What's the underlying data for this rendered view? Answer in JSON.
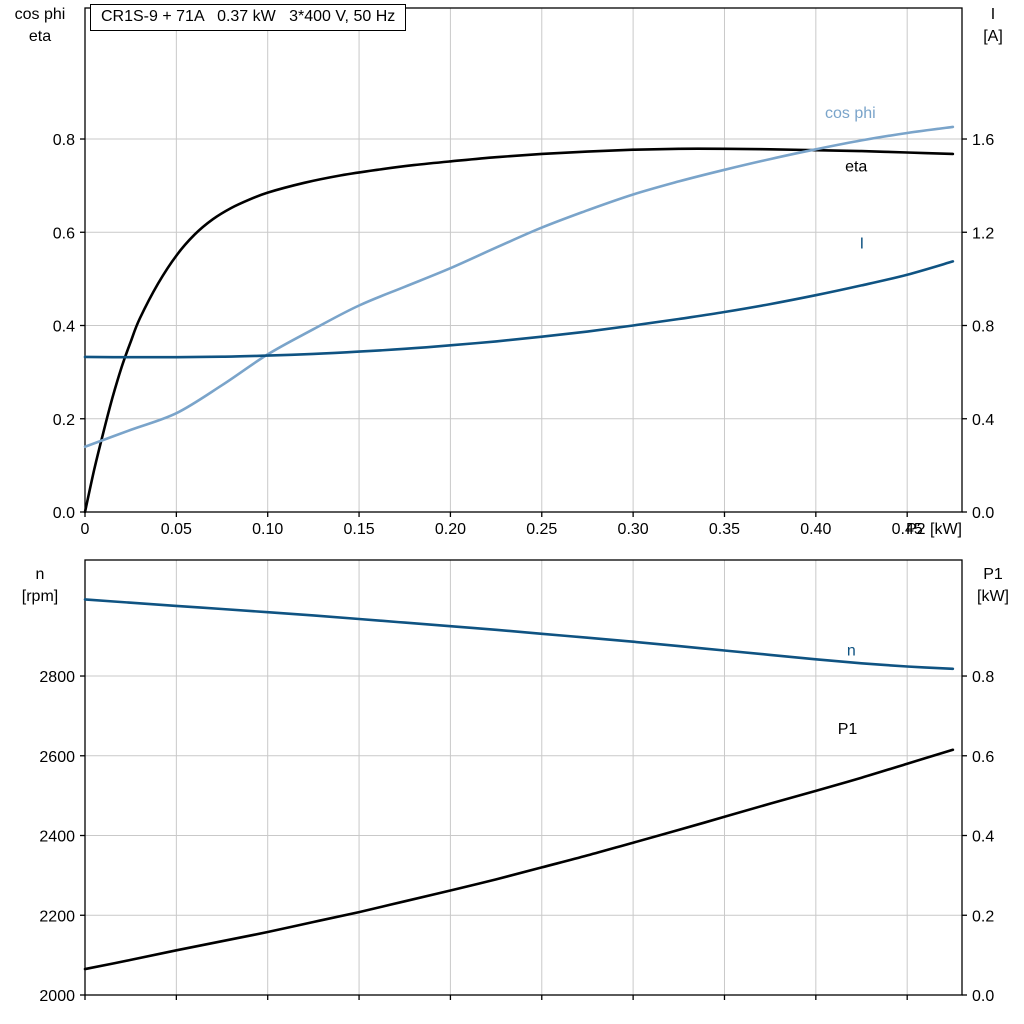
{
  "header": {
    "title": "CR1S-9 + 71A   0.37 kW   3*400 V, 50 Hz"
  },
  "colors": {
    "frame": "#000000",
    "grid": "#c9c9c9",
    "black": "#000000",
    "light_blue": "#7aa4ca",
    "dark_blue": "#0f5382"
  },
  "chart_data": [
    {
      "type": "line",
      "axes": {
        "x": {
          "label": "P2 [kW]",
          "min": 0,
          "max": 0.48,
          "ticks": [
            0,
            0.05,
            0.1,
            0.15,
            0.2,
            0.25,
            0.3,
            0.35,
            0.4,
            0.45
          ],
          "tick_labels": [
            "0",
            "0.05",
            "0.10",
            "0.15",
            "0.20",
            "0.25",
            "0.30",
            "0.35",
            "0.40",
            "0.45"
          ]
        },
        "left": {
          "title_lines": [
            "cos phi",
            "eta"
          ],
          "min": 0,
          "max": 1.081,
          "ticks": [
            0,
            0.2,
            0.4,
            0.6,
            0.8
          ],
          "tick_labels": [
            "0.0",
            "0.2",
            "0.4",
            "0.6",
            "0.8"
          ]
        },
        "right": {
          "title_lines": [
            "I",
            "[A]"
          ],
          "min": 0,
          "max": 2.162,
          "ticks": [
            0,
            0.4,
            0.8,
            1.2,
            1.6
          ],
          "tick_labels": [
            "0.0",
            "0.4",
            "0.8",
            "1.2",
            "1.6"
          ]
        }
      },
      "series": [
        {
          "name": "eta",
          "label": "eta",
          "axis": "left",
          "color": "black",
          "label_at": {
            "x": 0.416,
            "v": 0.73
          },
          "points": [
            [
              0,
              0
            ],
            [
              0.005,
              0.09
            ],
            [
              0.01,
              0.17
            ],
            [
              0.015,
              0.245
            ],
            [
              0.02,
              0.31
            ],
            [
              0.025,
              0.365
            ],
            [
              0.03,
              0.415
            ],
            [
              0.04,
              0.49
            ],
            [
              0.05,
              0.55
            ],
            [
              0.06,
              0.595
            ],
            [
              0.07,
              0.628
            ],
            [
              0.08,
              0.652
            ],
            [
              0.09,
              0.67
            ],
            [
              0.1,
              0.685
            ],
            [
              0.12,
              0.706
            ],
            [
              0.14,
              0.722
            ],
            [
              0.16,
              0.734
            ],
            [
              0.18,
              0.744
            ],
            [
              0.2,
              0.752
            ],
            [
              0.225,
              0.761
            ],
            [
              0.25,
              0.768
            ],
            [
              0.275,
              0.773
            ],
            [
              0.3,
              0.777
            ],
            [
              0.325,
              0.779
            ],
            [
              0.35,
              0.779
            ],
            [
              0.375,
              0.778
            ],
            [
              0.4,
              0.776
            ],
            [
              0.425,
              0.774
            ],
            [
              0.45,
              0.771
            ],
            [
              0.475,
              0.768
            ]
          ]
        },
        {
          "name": "cos-phi",
          "label": "cos phi",
          "axis": "left",
          "color": "light_blue",
          "label_at": {
            "x": 0.405,
            "v": 0.845
          },
          "points": [
            [
              0,
              0.14
            ],
            [
              0.025,
              0.176
            ],
            [
              0.05,
              0.212
            ],
            [
              0.075,
              0.272
            ],
            [
              0.1,
              0.338
            ],
            [
              0.125,
              0.392
            ],
            [
              0.15,
              0.443
            ],
            [
              0.175,
              0.483
            ],
            [
              0.2,
              0.523
            ],
            [
              0.225,
              0.567
            ],
            [
              0.25,
              0.61
            ],
            [
              0.275,
              0.647
            ],
            [
              0.3,
              0.681
            ],
            [
              0.325,
              0.709
            ],
            [
              0.35,
              0.734
            ],
            [
              0.375,
              0.757
            ],
            [
              0.4,
              0.778
            ],
            [
              0.425,
              0.797
            ],
            [
              0.45,
              0.813
            ],
            [
              0.475,
              0.826
            ]
          ]
        },
        {
          "name": "current",
          "label": "I",
          "axis": "right",
          "color": "dark_blue",
          "label_at": {
            "x": 0.424,
            "v": 1.13
          },
          "points": [
            [
              0,
              0.665
            ],
            [
              0.025,
              0.664
            ],
            [
              0.05,
              0.664
            ],
            [
              0.075,
              0.666
            ],
            [
              0.1,
              0.671
            ],
            [
              0.125,
              0.678
            ],
            [
              0.15,
              0.688
            ],
            [
              0.175,
              0.7
            ],
            [
              0.2,
              0.715
            ],
            [
              0.225,
              0.732
            ],
            [
              0.25,
              0.752
            ],
            [
              0.275,
              0.774
            ],
            [
              0.3,
              0.8
            ],
            [
              0.325,
              0.828
            ],
            [
              0.35,
              0.858
            ],
            [
              0.375,
              0.892
            ],
            [
              0.4,
              0.93
            ],
            [
              0.425,
              0.972
            ],
            [
              0.45,
              1.018
            ],
            [
              0.475,
              1.075
            ]
          ]
        }
      ]
    },
    {
      "type": "line",
      "axes": {
        "x": {
          "label": "",
          "min": 0,
          "max": 0.48,
          "ticks": [
            0,
            0.05,
            0.1,
            0.15,
            0.2,
            0.25,
            0.3,
            0.35,
            0.4,
            0.45
          ],
          "tick_labels": []
        },
        "left": {
          "title_lines": [
            "n",
            "[rpm]"
          ],
          "min": 2000,
          "max": 3091,
          "ticks": [
            2000,
            2200,
            2400,
            2600,
            2800
          ],
          "tick_labels": [
            "2000",
            "2200",
            "2400",
            "2600",
            "2800"
          ]
        },
        "right": {
          "title_lines": [
            "P1",
            "[kW]"
          ],
          "min": 0,
          "max": 1.091,
          "ticks": [
            0,
            0.2,
            0.4,
            0.6,
            0.8
          ],
          "tick_labels": [
            "0.0",
            "0.2",
            "0.4",
            "0.6",
            "0.8"
          ]
        }
      },
      "series": [
        {
          "name": "speed",
          "label": "n",
          "axis": "left",
          "color": "dark_blue",
          "label_at": {
            "x": 0.417,
            "v": 2852
          },
          "points": [
            [
              0,
              2992
            ],
            [
              0.025,
              2984
            ],
            [
              0.05,
              2976
            ],
            [
              0.075,
              2968
            ],
            [
              0.1,
              2960
            ],
            [
              0.125,
              2952
            ],
            [
              0.15,
              2943
            ],
            [
              0.175,
              2934
            ],
            [
              0.2,
              2925
            ],
            [
              0.225,
              2916
            ],
            [
              0.25,
              2906
            ],
            [
              0.275,
              2896
            ],
            [
              0.3,
              2886
            ],
            [
              0.325,
              2875
            ],
            [
              0.35,
              2864
            ],
            [
              0.375,
              2853
            ],
            [
              0.4,
              2842
            ],
            [
              0.425,
              2832
            ],
            [
              0.45,
              2824
            ],
            [
              0.475,
              2818
            ]
          ]
        },
        {
          "name": "input-power",
          "label": "P1",
          "axis": "right",
          "color": "black",
          "label_at": {
            "x": 0.412,
            "v": 0.655
          },
          "points": [
            [
              0,
              0.065
            ],
            [
              0.025,
              0.088
            ],
            [
              0.05,
              0.112
            ],
            [
              0.075,
              0.135
            ],
            [
              0.1,
              0.158
            ],
            [
              0.125,
              0.183
            ],
            [
              0.15,
              0.208
            ],
            [
              0.175,
              0.235
            ],
            [
              0.2,
              0.262
            ],
            [
              0.225,
              0.29
            ],
            [
              0.25,
              0.32
            ],
            [
              0.275,
              0.35
            ],
            [
              0.3,
              0.382
            ],
            [
              0.325,
              0.414
            ],
            [
              0.35,
              0.447
            ],
            [
              0.375,
              0.48
            ],
            [
              0.4,
              0.512
            ],
            [
              0.425,
              0.545
            ],
            [
              0.45,
              0.58
            ],
            [
              0.475,
              0.615
            ]
          ]
        }
      ]
    }
  ]
}
